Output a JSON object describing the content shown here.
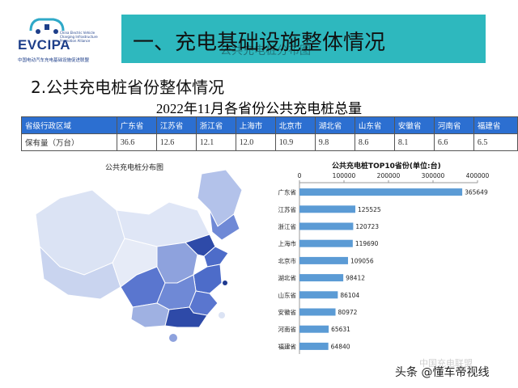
{
  "logo": {
    "brand": "EVCIPA",
    "subtitle": "China Electric Vehicle Charging Infrastructure Promotion Alliance",
    "cn_name": "中国电动汽车充电基础设施促进联盟"
  },
  "header": {
    "title": "一、充电基础设施整体情况",
    "overlay_text": "公共充电桩分布图"
  },
  "section": {
    "title": "2.公共充电桩省份整体情况"
  },
  "table": {
    "title": "2022年11月各省份公共充电桩总量",
    "row1_label": "省级行政区域",
    "row2_label": "保有量（万台）",
    "provinces": [
      "广东省",
      "江苏省",
      "浙江省",
      "上海市",
      "北京市",
      "湖北省",
      "山东省",
      "安徽省",
      "河南省",
      "福建省"
    ],
    "values": [
      "36.6",
      "12.6",
      "12.1",
      "12.0",
      "10.9",
      "9.8",
      "8.6",
      "8.1",
      "6.6",
      "6.5"
    ]
  },
  "map": {
    "title": "公共充电桩分布图",
    "colors": {
      "light": "#e3e8f5",
      "mid": "#8fa3dc",
      "dark": "#4d6cc9",
      "darkest": "#2e4aa8"
    }
  },
  "chart_data": {
    "type": "bar",
    "orientation": "horizontal",
    "title": "公共充电桩TOP10省份(单位:台)",
    "categories": [
      "广东省",
      "江苏省",
      "浙江省",
      "上海市",
      "北京市",
      "湖北省",
      "山东省",
      "安徽省",
      "河南省",
      "福建省"
    ],
    "values": [
      365649,
      125525,
      120723,
      119690,
      109056,
      98412,
      86104,
      80972,
      65631,
      64840
    ],
    "xlim": [
      0,
      400000
    ],
    "xticks": [
      "0",
      "100000",
      "200000",
      "300000",
      "400000"
    ],
    "axis_position": "top",
    "bar_color": "#5b9bd5"
  },
  "watermark": "中国充电联盟",
  "footer": "头条 @懂车帝视线"
}
